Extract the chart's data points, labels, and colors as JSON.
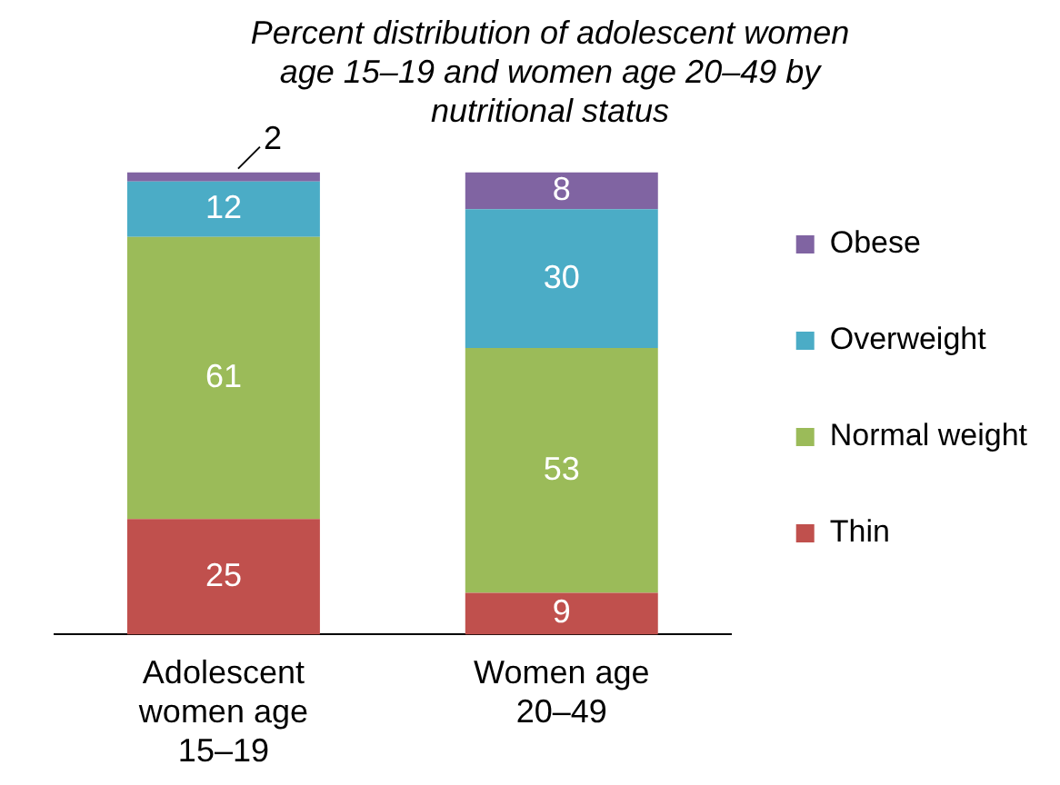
{
  "chart_data": {
    "type": "bar",
    "title": "Percent distribution of adolescent women age 15–19 and women age 20–49 by nutritional status",
    "categories": [
      "Adolescent women age 15–19",
      "Women age 20–49"
    ],
    "stacked": true,
    "ylim": [
      0,
      100
    ],
    "tick_labels": "x",
    "data_labels": true,
    "legend": "right",
    "series": [
      {
        "name": "Thin",
        "color": "#c0504d",
        "values": [
          25,
          9
        ]
      },
      {
        "name": "Normal weight",
        "color": "#9bbb59",
        "values": [
          61,
          53
        ]
      },
      {
        "name": "Overweight",
        "color": "#4bacc6",
        "values": [
          12,
          30
        ]
      },
      {
        "name": "Obese",
        "color": "#8064a2",
        "values": [
          2,
          8
        ]
      }
    ]
  }
}
